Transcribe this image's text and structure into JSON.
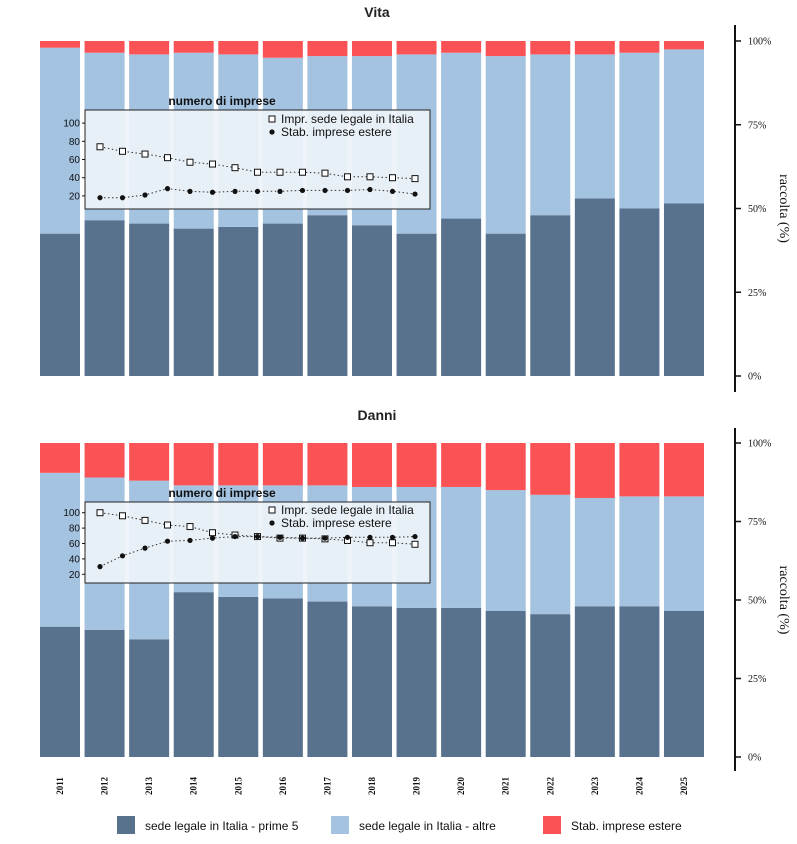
{
  "colors": {
    "prime5": "#58718c",
    "altre": "#a3c3e1",
    "estere": "#fb5256",
    "inset_bg": "#edf3f9"
  },
  "legend": {
    "items": [
      {
        "label": "sede legale in Italia - prime 5",
        "color_key": "prime5"
      },
      {
        "label": "sede legale in Italia - altre",
        "color_key": "altre"
      },
      {
        "label": "Stab. imprese estere",
        "color_key": "estere"
      }
    ]
  },
  "chart_data": [
    {
      "type": "bar",
      "stacked": true,
      "title": "Vita",
      "ylabel": "raccolta (%)",
      "yticks": [
        "0%",
        "25%",
        "50%",
        "75%",
        "100%"
      ],
      "ylim": [
        0,
        100
      ],
      "categories": [
        "2011",
        "2012",
        "2013",
        "2014",
        "2015",
        "2016",
        "2017",
        "2018",
        "2019",
        "2020",
        "2021",
        "2022",
        "2023",
        "2024",
        "2025"
      ],
      "series": [
        {
          "name": "sede legale in Italia - prime 5",
          "values": [
            42.5,
            46.5,
            45.5,
            44,
            44.5,
            45.5,
            48,
            45,
            42.5,
            47,
            42.5,
            48,
            53,
            50,
            51.5
          ]
        },
        {
          "name": "sede legale in Italia - altre",
          "values": [
            55.5,
            50,
            50.5,
            52.5,
            51.5,
            49.5,
            47.5,
            50.5,
            53.5,
            49.5,
            53,
            48,
            43,
            46.5,
            46
          ]
        },
        {
          "name": "Stab. imprese estere",
          "values": [
            2,
            3.5,
            4,
            3.5,
            4,
            5,
            4.5,
            4.5,
            4,
            3.5,
            4.5,
            4,
            4,
            3.5,
            2.5
          ]
        }
      ],
      "inset": {
        "type": "line",
        "title": "numero di imprese",
        "yticks": [
          20,
          40,
          60,
          80,
          100
        ],
        "ylim": [
          10,
          110
        ],
        "categories": [
          "2011",
          "2012",
          "2013",
          "2014",
          "2015",
          "2016",
          "2017",
          "2018",
          "2019",
          "2020",
          "2021",
          "2022",
          "2023",
          "2024",
          "2025"
        ],
        "series": [
          {
            "name": "Impr. sede legale in Italia",
            "marker": "square",
            "values": [
              74,
              69,
              66,
              62,
              57,
              55,
              51,
              46,
              46,
              46,
              45,
              41,
              41,
              40,
              39
            ]
          },
          {
            "name": "Stab. imprese estere",
            "marker": "circle",
            "values": [
              18,
              18,
              21,
              28,
              25,
              24,
              25,
              25,
              25,
              26,
              26,
              26,
              27,
              25,
              22
            ]
          }
        ]
      }
    },
    {
      "type": "bar",
      "stacked": true,
      "title": "Danni",
      "ylabel": "raccolta (%)",
      "yticks": [
        "0%",
        "25%",
        "50%",
        "75%",
        "100%"
      ],
      "ylim": [
        0,
        100
      ],
      "categories": [
        "2011",
        "2012",
        "2013",
        "2014",
        "2015",
        "2016",
        "2017",
        "2018",
        "2019",
        "2020",
        "2021",
        "2022",
        "2023",
        "2024",
        "2025"
      ],
      "series": [
        {
          "name": "sede legale in Italia - prime 5",
          "values": [
            41.5,
            40.5,
            37.5,
            52.5,
            51,
            50.5,
            49.5,
            48,
            47.5,
            47.5,
            46.5,
            45.5,
            48,
            48,
            46.5
          ]
        },
        {
          "name": "sede legale in Italia - altre",
          "values": [
            49,
            48.5,
            50.5,
            34,
            35.5,
            36,
            37,
            38,
            38.5,
            38.5,
            38.5,
            38,
            34.5,
            35,
            36.5
          ]
        },
        {
          "name": "Stab. imprese estere",
          "values": [
            9.5,
            11,
            12,
            13.5,
            13.5,
            13.5,
            13.5,
            14,
            14,
            14,
            15,
            16.5,
            17.5,
            17,
            17
          ]
        }
      ],
      "inset": {
        "type": "line",
        "title": "numero di imprese",
        "yticks": [
          20,
          40,
          60,
          80,
          100
        ],
        "ylim": [
          10,
          110
        ],
        "categories": [
          "2011",
          "2012",
          "2013",
          "2014",
          "2015",
          "2016",
          "2017",
          "2018",
          "2019",
          "2020",
          "2021",
          "2022",
          "2023",
          "2024",
          "2025"
        ],
        "series": [
          {
            "name": "Impr. sede legale in Italia",
            "marker": "square",
            "values": [
              100,
              96,
              90,
              84,
              82,
              74,
              71,
              69,
              67,
              67,
              66,
              64,
              61,
              61,
              59
            ]
          },
          {
            "name": "Stab. imprese estere",
            "marker": "circle",
            "values": [
              30,
              44,
              54,
              63,
              64,
              67,
              69,
              69,
              68,
              67,
              67,
              68,
              68,
              68,
              69
            ]
          }
        ]
      }
    }
  ]
}
